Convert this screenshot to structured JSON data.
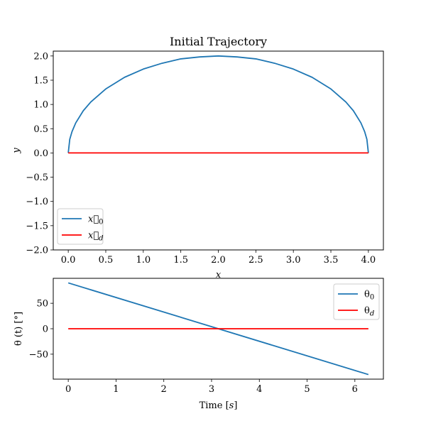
{
  "chart_data": [
    {
      "type": "line",
      "title": "Initial Trajectory",
      "xlabel": "x",
      "ylabel": "y",
      "xlim": [
        -0.2,
        4.2
      ],
      "ylim": [
        -2.0,
        2.1
      ],
      "xticks": [
        0.0,
        0.5,
        1.0,
        1.5,
        2.0,
        2.5,
        3.0,
        3.5,
        4.0
      ],
      "xtick_labels": [
        "0.0",
        "0.5",
        "1.0",
        "1.5",
        "2.0",
        "2.5",
        "3.0",
        "3.5",
        "4.0"
      ],
      "yticks": [
        -2.0,
        -1.5,
        -1.0,
        -0.5,
        0.0,
        0.5,
        1.0,
        1.5,
        2.0
      ],
      "ytick_labels": [
        "−2.0",
        "−1.5",
        "−1.0",
        "−0.5",
        "0.0",
        "0.5",
        "1.0",
        "1.5",
        "2.0"
      ],
      "legend": "lower-left",
      "series": [
        {
          "name": "x⃗0",
          "name_base": "x⃗",
          "name_sub": "0",
          "color": "#1f77b4",
          "x": [
            0.0,
            0.02,
            0.05,
            0.1,
            0.2,
            0.3,
            0.5,
            0.75,
            1.0,
            1.25,
            1.5,
            1.75,
            2.0,
            2.25,
            2.5,
            2.75,
            3.0,
            3.25,
            3.5,
            3.7,
            3.8,
            3.9,
            3.95,
            3.98,
            4.0
          ],
          "y": [
            0.0,
            0.28,
            0.44,
            0.62,
            0.87,
            1.05,
            1.32,
            1.56,
            1.73,
            1.85,
            1.94,
            1.98,
            2.0,
            1.98,
            1.94,
            1.85,
            1.73,
            1.56,
            1.32,
            1.05,
            0.87,
            0.62,
            0.44,
            0.28,
            0.0
          ]
        },
        {
          "name": "x⃗d",
          "name_base": "x⃗",
          "name_sub": "d",
          "color": "#ff0000",
          "x": [
            0.0,
            4.0
          ],
          "y": [
            0.0,
            0.0
          ]
        }
      ]
    },
    {
      "type": "line",
      "title": "",
      "xlabel": "Time [s]",
      "xlabel_main": "Time [",
      "xlabel_unit": "s",
      "xlabel_close": "]",
      "ylabel": "θ (t) [°]",
      "xlim": [
        -0.3142,
        6.5973
      ],
      "ylim": [
        -99,
        99
      ],
      "xticks": [
        0,
        1,
        2,
        3,
        4,
        5,
        6
      ],
      "xtick_labels": [
        "0",
        "1",
        "2",
        "3",
        "4",
        "5",
        "6"
      ],
      "yticks": [
        -50,
        0,
        50
      ],
      "ytick_labels": [
        "−50",
        "0",
        "50"
      ],
      "legend": "upper-right",
      "series": [
        {
          "name": "θ0",
          "name_base": "θ",
          "name_sub": "0",
          "color": "#1f77b4",
          "x": [
            0.0,
            6.2832
          ],
          "y": [
            90,
            -90
          ]
        },
        {
          "name": "θd",
          "name_base": "θ",
          "name_sub": "d",
          "color": "#ff0000",
          "x": [
            0.0,
            6.2832
          ],
          "y": [
            0,
            0
          ]
        }
      ]
    }
  ]
}
